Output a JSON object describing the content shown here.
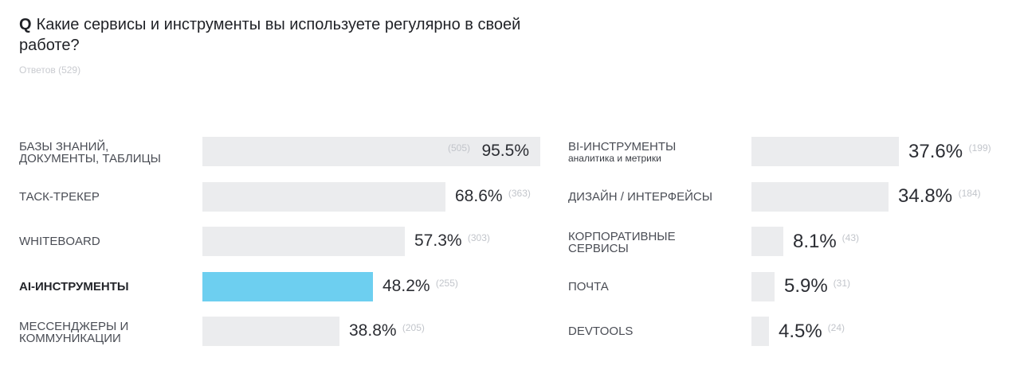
{
  "question": {
    "mark": "Q",
    "text": "Какие сервисы и инструменты вы используете регулярно в своей работе?",
    "responses": "Ответов (529)"
  },
  "colors": {
    "bar": "#ebecee",
    "highlight": "#6dcff0"
  },
  "chart_data": {
    "type": "bar",
    "orientation": "horizontal",
    "title": "Какие сервисы и инструменты вы используете регулярно в своей работе?",
    "unit": "%",
    "xlim": [
      0,
      100
    ],
    "groups": [
      {
        "column": "left",
        "items": [
          {
            "label": "БАЗЫ ЗНАНИЙ,\nДОКУМЕНТЫ, ТАБЛИЦЫ",
            "sublabel": "",
            "value": 95.5,
            "count": 505,
            "value_text": "95.5%",
            "count_text": "(505)",
            "highlight": false
          },
          {
            "label": "ТАСК-ТРЕКЕР",
            "sublabel": "",
            "value": 68.6,
            "count": 363,
            "value_text": "68.6%",
            "count_text": "(363)",
            "highlight": false
          },
          {
            "label": "WHITEBOARD",
            "sublabel": "",
            "value": 57.3,
            "count": 303,
            "value_text": "57.3%",
            "count_text": "(303)",
            "highlight": false
          },
          {
            "label": "AI-ИНСТРУМЕНТЫ",
            "sublabel": "",
            "value": 48.2,
            "count": 255,
            "value_text": "48.2%",
            "count_text": "(255)",
            "highlight": true
          },
          {
            "label": "МЕССЕНДЖЕРЫ И\nКОММУНИКАЦИИ",
            "sublabel": "",
            "value": 38.8,
            "count": 205,
            "value_text": "38.8%",
            "count_text": "(205)",
            "highlight": false
          }
        ]
      },
      {
        "column": "right",
        "items": [
          {
            "label": "BI-ИНСТРУМЕНТЫ",
            "sublabel": "аналитика и метрики",
            "value": 37.6,
            "count": 199,
            "value_text": "37.6%",
            "count_text": "(199)",
            "highlight": false
          },
          {
            "label": "ДИЗАЙН / ИНТЕРФЕЙСЫ",
            "sublabel": "",
            "value": 34.8,
            "count": 184,
            "value_text": "34.8%",
            "count_text": "(184)",
            "highlight": false
          },
          {
            "label": "КОРПОРАТИВНЫЕ\nСЕРВИСЫ",
            "sublabel": "",
            "value": 8.1,
            "count": 43,
            "value_text": "8.1%",
            "count_text": "(43)",
            "highlight": false
          },
          {
            "label": "ПОЧТА",
            "sublabel": "",
            "value": 5.9,
            "count": 31,
            "value_text": "5.9%",
            "count_text": "(31)",
            "highlight": false
          },
          {
            "label": "DEVTOOLS",
            "sublabel": "",
            "value": 4.5,
            "count": 24,
            "value_text": "4.5%",
            "count_text": "(24)",
            "highlight": false
          }
        ]
      }
    ]
  }
}
